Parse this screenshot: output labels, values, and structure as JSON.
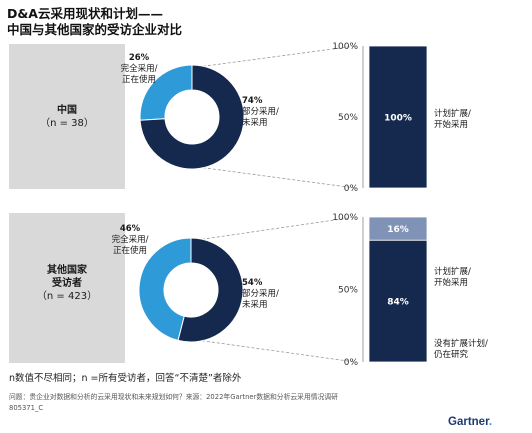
{
  "title": {
    "line1": "D&A云采用现状和计划——",
    "line2": "中国与其他国家的受访企业对比"
  },
  "footnote": "n数值不尽相同；n =所有受访者，回答“不清楚”者除外",
  "source": "问题：贵企业对数据和分析的云采用现状和未来规划如何？来源：2022年Gartner数据和分析云采用情况调研",
  "doc_id": "805371_C",
  "logo": {
    "text": "Gartner",
    "dot": "."
  },
  "colors": {
    "navy": "#15294f",
    "light_blue": "#2e9ad8",
    "slate": "#8093b6",
    "panel_gray": "#d9d9d9",
    "guide": "#9a9a9a"
  },
  "groups": [
    {
      "name": "中国",
      "n": "（n = 38）"
    },
    {
      "name_line1": "其他国家",
      "name_line2": "受访者",
      "n": "（n = 423）"
    }
  ],
  "donut_labels": [
    {
      "full_pct": "26%",
      "full_line1": "完全采用/",
      "full_line2": "正在使用",
      "part_pct": "74%",
      "part_line1": "部分采用/",
      "part_line2": "未采用"
    },
    {
      "full_pct": "46%",
      "full_line1": "完全采用/",
      "full_line2": "正在使用",
      "part_pct": "54%",
      "part_line1": "部分采用/",
      "part_line2": "未采用"
    }
  ],
  "bar_labels": [
    {
      "seg1_line1": "计划扩展/",
      "seg1_line2": "开始采用"
    },
    {
      "seg1_line1": "计划扩展/",
      "seg1_line2": "开始采用",
      "seg2_line1": "没有扩展计划/",
      "seg2_line2": "仍在研究"
    }
  ],
  "chart_data": [
    {
      "type": "pie",
      "title": "中国",
      "categories": [
        "完全采用/正在使用",
        "部分采用/未采用"
      ],
      "values": [
        26,
        74
      ]
    },
    {
      "type": "bar",
      "categories": [
        "中国"
      ],
      "series": [
        {
          "name": "计划扩展/开始采用",
          "values": [
            100
          ]
        }
      ],
      "ylim": [
        0,
        100
      ],
      "ytick_labels": [
        "0%",
        "50%",
        "100%"
      ]
    },
    {
      "type": "pie",
      "title": "其他国家受访者",
      "categories": [
        "完全采用/正在使用",
        "部分采用/未采用"
      ],
      "values": [
        46,
        54
      ]
    },
    {
      "type": "bar",
      "categories": [
        "其他国家受访者"
      ],
      "series": [
        {
          "name": "计划扩展/开始采用",
          "values": [
            84
          ]
        },
        {
          "name": "没有扩展计划/仍在研究",
          "values": [
            16
          ]
        }
      ],
      "ylim": [
        0,
        100
      ],
      "ytick_labels": [
        "0%",
        "50%",
        "100%"
      ]
    }
  ]
}
